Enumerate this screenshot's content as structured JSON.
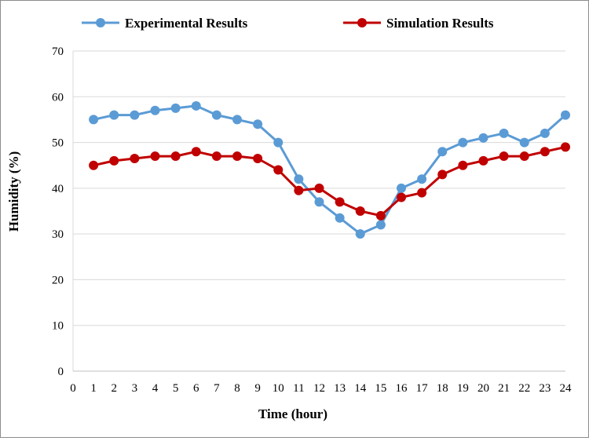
{
  "chart_data": {
    "type": "line",
    "title": "",
    "xlabel": "Time (hour)",
    "ylabel": "Humidity (%)",
    "xlim": [
      0,
      24
    ],
    "ylim": [
      0,
      70
    ],
    "x_ticks": [
      "0",
      "1",
      "2",
      "3",
      "4",
      "5",
      "6",
      "7",
      "8",
      "9",
      "10",
      "11",
      "12",
      "13",
      "14",
      "15",
      "16",
      "17",
      "18",
      "19",
      "20",
      "21",
      "22",
      "23",
      "24"
    ],
    "y_ticks": [
      "0",
      "10",
      "20",
      "30",
      "40",
      "50",
      "60",
      "70"
    ],
    "grid": "horizontal",
    "legend_position": "top",
    "x": [
      1,
      2,
      3,
      4,
      5,
      6,
      7,
      8,
      9,
      10,
      11,
      12,
      13,
      14,
      15,
      16,
      17,
      18,
      19,
      20,
      21,
      22,
      23,
      24
    ],
    "series": [
      {
        "name": "Experimental Results",
        "color": "#5b9bd5",
        "values": [
          55,
          56,
          56,
          57,
          57.5,
          58,
          56,
          55,
          54,
          50,
          42,
          37,
          33.5,
          30,
          32,
          40,
          42,
          48,
          50,
          51,
          52,
          50,
          52,
          56
        ]
      },
      {
        "name": "Simulation Results",
        "color": "#c00000",
        "values": [
          45,
          46,
          46.5,
          47,
          47,
          48,
          47,
          47,
          46.5,
          44,
          39.5,
          40,
          37,
          35,
          34,
          38,
          39,
          43,
          45,
          46,
          47,
          47,
          48,
          49
        ]
      }
    ]
  }
}
